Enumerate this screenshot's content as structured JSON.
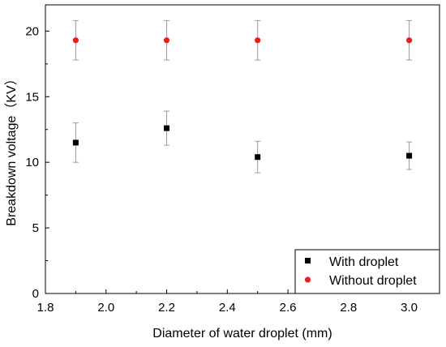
{
  "chart_data": {
    "type": "scatter",
    "title": "",
    "xlabel": "Diameter of water droplet (mm)",
    "ylabel": "Breakdown voltage（KV）",
    "xlim": [
      1.8,
      3.1
    ],
    "ylim": [
      0,
      22
    ],
    "xticks": [
      1.8,
      2.0,
      2.2,
      2.4,
      2.6,
      2.8,
      3.0
    ],
    "xtick_labels": [
      "1.8",
      "2.0",
      "2.2",
      "2.4",
      "2.6",
      "2.8",
      "3.0"
    ],
    "yticks": [
      0,
      5,
      10,
      15,
      20
    ],
    "ytick_labels": [
      "0",
      "5",
      "10",
      "15",
      "20"
    ],
    "grid": false,
    "legend_position": "bottom-right",
    "series": [
      {
        "name": "With droplet",
        "marker": "square",
        "color": "#000000",
        "x": [
          1.9,
          2.2,
          2.5,
          3.0
        ],
        "y": [
          11.5,
          12.6,
          10.4,
          10.5
        ],
        "yerr": [
          1.5,
          1.3,
          1.2,
          1.05
        ]
      },
      {
        "name": "Without droplet",
        "marker": "circle",
        "color": "#e8201c",
        "x": [
          1.9,
          2.2,
          2.5,
          3.0
        ],
        "y": [
          19.3,
          19.3,
          19.3,
          19.3
        ],
        "yerr": [
          1.5,
          1.5,
          1.5,
          1.5
        ]
      }
    ]
  }
}
